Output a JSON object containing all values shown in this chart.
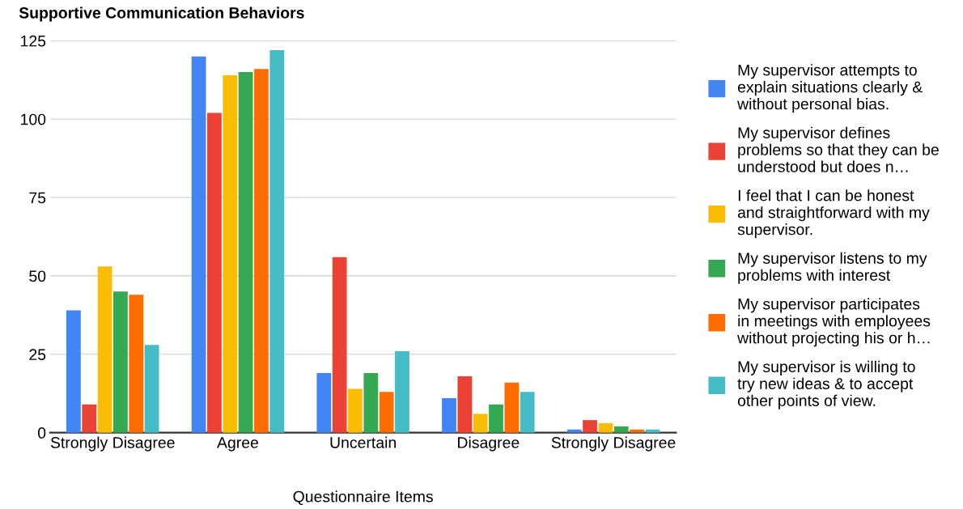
{
  "chart_data": {
    "type": "bar",
    "title": "Supportive Communication Behaviors",
    "xlabel": "Questionnaire Items",
    "categories": [
      "Strongly Disagree",
      "Agree",
      "Uncertain",
      "Disagree",
      "Strongly Disagree"
    ],
    "series": [
      {
        "name": "My supervisor attempts to explain situations clearly & without personal bias.",
        "color": "#4285f4",
        "values": [
          39,
          120,
          19,
          11,
          1
        ]
      },
      {
        "name": "My supervisor defines problems so that they can be understood but does n…",
        "color": "#ea4335",
        "values": [
          9,
          102,
          56,
          18,
          4
        ]
      },
      {
        "name": "I feel that I can be honest and straightforward with my supervisor.",
        "color": "#fbbc04",
        "values": [
          53,
          114,
          14,
          6,
          3
        ]
      },
      {
        "name": "My supervisor listens to my problems with interest",
        "color": "#34a853",
        "values": [
          45,
          115,
          19,
          9,
          2
        ]
      },
      {
        "name": "My supervisor participates in meetings with employees without projecting his or h…",
        "color": "#ff6d01",
        "values": [
          44,
          116,
          13,
          16,
          1
        ]
      },
      {
        "name": "My supervisor is willing to try new ideas & to accept other points of view.",
        "color": "#46bdc6",
        "values": [
          28,
          122,
          26,
          13,
          1
        ]
      }
    ],
    "ylim": [
      0,
      125
    ],
    "yticks": [
      0,
      25,
      50,
      75,
      100,
      125
    ],
    "grid": "y",
    "legend": "right"
  }
}
